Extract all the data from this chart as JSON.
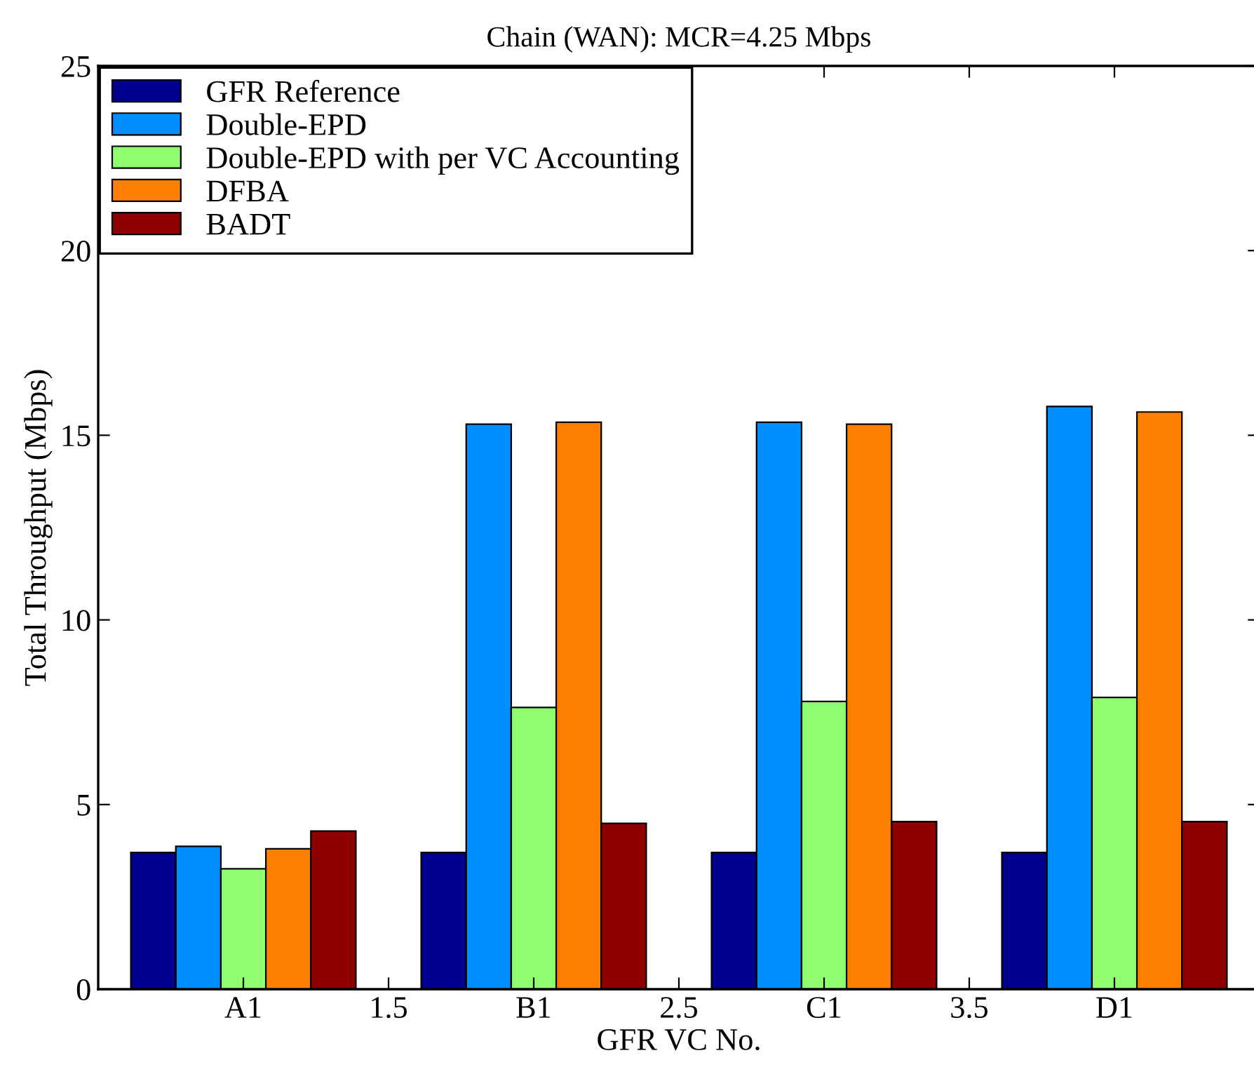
{
  "chart_data": {
    "type": "bar",
    "title": "Chain (WAN): MCR=4.25 Mbps",
    "xlabel": "GFR VC No.",
    "ylabel": "Total Throughput (Mbps)",
    "x": [
      1,
      2,
      3,
      4
    ],
    "xlim": [
      0.5,
      4.5
    ],
    "xticks": [
      {
        "value": 1,
        "label": "A1"
      },
      1.5,
      {
        "value": 2,
        "label": "B1"
      },
      2.5,
      {
        "value": 3,
        "label": "C1"
      },
      3.5,
      {
        "value": 4,
        "label": "D1"
      }
    ],
    "ylim": [
      0,
      25
    ],
    "yticks": [
      0,
      5,
      10,
      15,
      20,
      25
    ],
    "grid": false,
    "legend": "top left",
    "series": [
      {
        "name": "GFR Reference",
        "color": "#00008f",
        "values": [
          3.7,
          3.7,
          3.7,
          3.7
        ]
      },
      {
        "name": "Double-EPD",
        "color": "#008fff",
        "values": [
          3.87,
          15.3,
          15.35,
          15.78
        ]
      },
      {
        "name": "Double-EPD with per VC Accounting",
        "color": "#8fff70",
        "values": [
          3.26,
          7.63,
          7.79,
          7.9
        ]
      },
      {
        "name": "DFBA",
        "color": "#ff8000",
        "values": [
          3.8,
          15.35,
          15.3,
          15.63
        ]
      },
      {
        "name": "BADT",
        "color": "#8f0000",
        "values": [
          4.28,
          4.49,
          4.54,
          4.54
        ]
      }
    ]
  }
}
